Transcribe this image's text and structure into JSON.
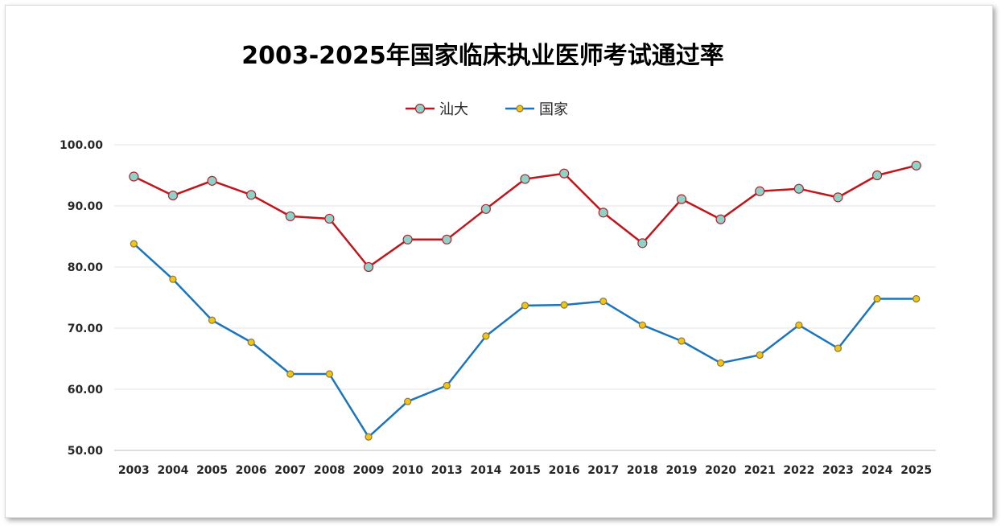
{
  "chart_data": {
    "type": "line",
    "title": "2003-2025年国家临床执业医师考试通过率",
    "xlabel": "",
    "ylabel": "",
    "categories": [
      "2003",
      "2004",
      "2005",
      "2006",
      "2007",
      "2008",
      "2009",
      "2010",
      "2013",
      "2014",
      "2015",
      "2016",
      "2017",
      "2018",
      "2019",
      "2020",
      "2021",
      "2022",
      "2023",
      "2024",
      "2025"
    ],
    "ylim": [
      50,
      100
    ],
    "yticks": [
      50,
      60,
      70,
      80,
      90,
      100
    ],
    "ytick_labels": [
      "50.00",
      "60.00",
      "70.00",
      "80.00",
      "90.00",
      "100.00"
    ],
    "grid": true,
    "legend_position": "top-center",
    "series": [
      {
        "name": "汕大",
        "color": "#c0161b",
        "marker_color": "#8ed2c8",
        "values": [
          94.8,
          91.7,
          94.1,
          91.8,
          88.3,
          87.9,
          80.0,
          84.5,
          84.5,
          89.5,
          94.4,
          95.3,
          88.9,
          83.9,
          91.1,
          87.8,
          92.4,
          92.8,
          91.4,
          95.0,
          96.6
        ]
      },
      {
        "name": "国家",
        "color": "#1c75bc",
        "marker_color": "#f2c318",
        "values": [
          83.8,
          78.0,
          71.3,
          67.7,
          62.5,
          62.5,
          52.2,
          58.0,
          60.6,
          68.7,
          73.7,
          73.8,
          74.4,
          70.5,
          67.9,
          64.3,
          65.6,
          70.5,
          66.7,
          74.8,
          74.8
        ]
      }
    ]
  }
}
